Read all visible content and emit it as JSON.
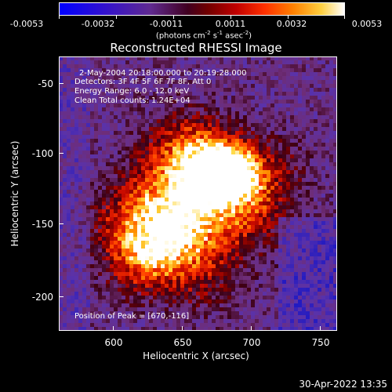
{
  "colorbar": {
    "ticks": [
      "-0.0053",
      "-0.0032",
      "-0.0011",
      "0.0011",
      "0.0032",
      "0.0053"
    ],
    "units_main": "(photons cm",
    "units_exp1": "-2",
    "units_mid": " s",
    "units_exp2": "-1",
    "units_mid2": " asec",
    "units_exp3": "-2",
    "units_end": ")"
  },
  "title": "Reconstructed RHESSI Image",
  "annotations": {
    "time": "2-May-2004 20:18:00.000 to 20:19:28.000",
    "detectors": "Detectors: 3F 4F 5F 6F 7F 8F, Att 0",
    "energy": "Energy Range: 6.0 - 12.0 keV",
    "clean": "Clean     Total counts: 1.24E+04",
    "peak": "Position of Peak = [670,-116]"
  },
  "axes": {
    "xlabel": "Heliocentric X (arcsec)",
    "ylabel": "Heliocentric Y (arcsec)",
    "xticks": [
      "600",
      "650",
      "700",
      "750"
    ],
    "yticks": [
      "-50",
      "-100",
      "-150",
      "-200"
    ]
  },
  "timestamp": "30-Apr-2022 13:35"
}
